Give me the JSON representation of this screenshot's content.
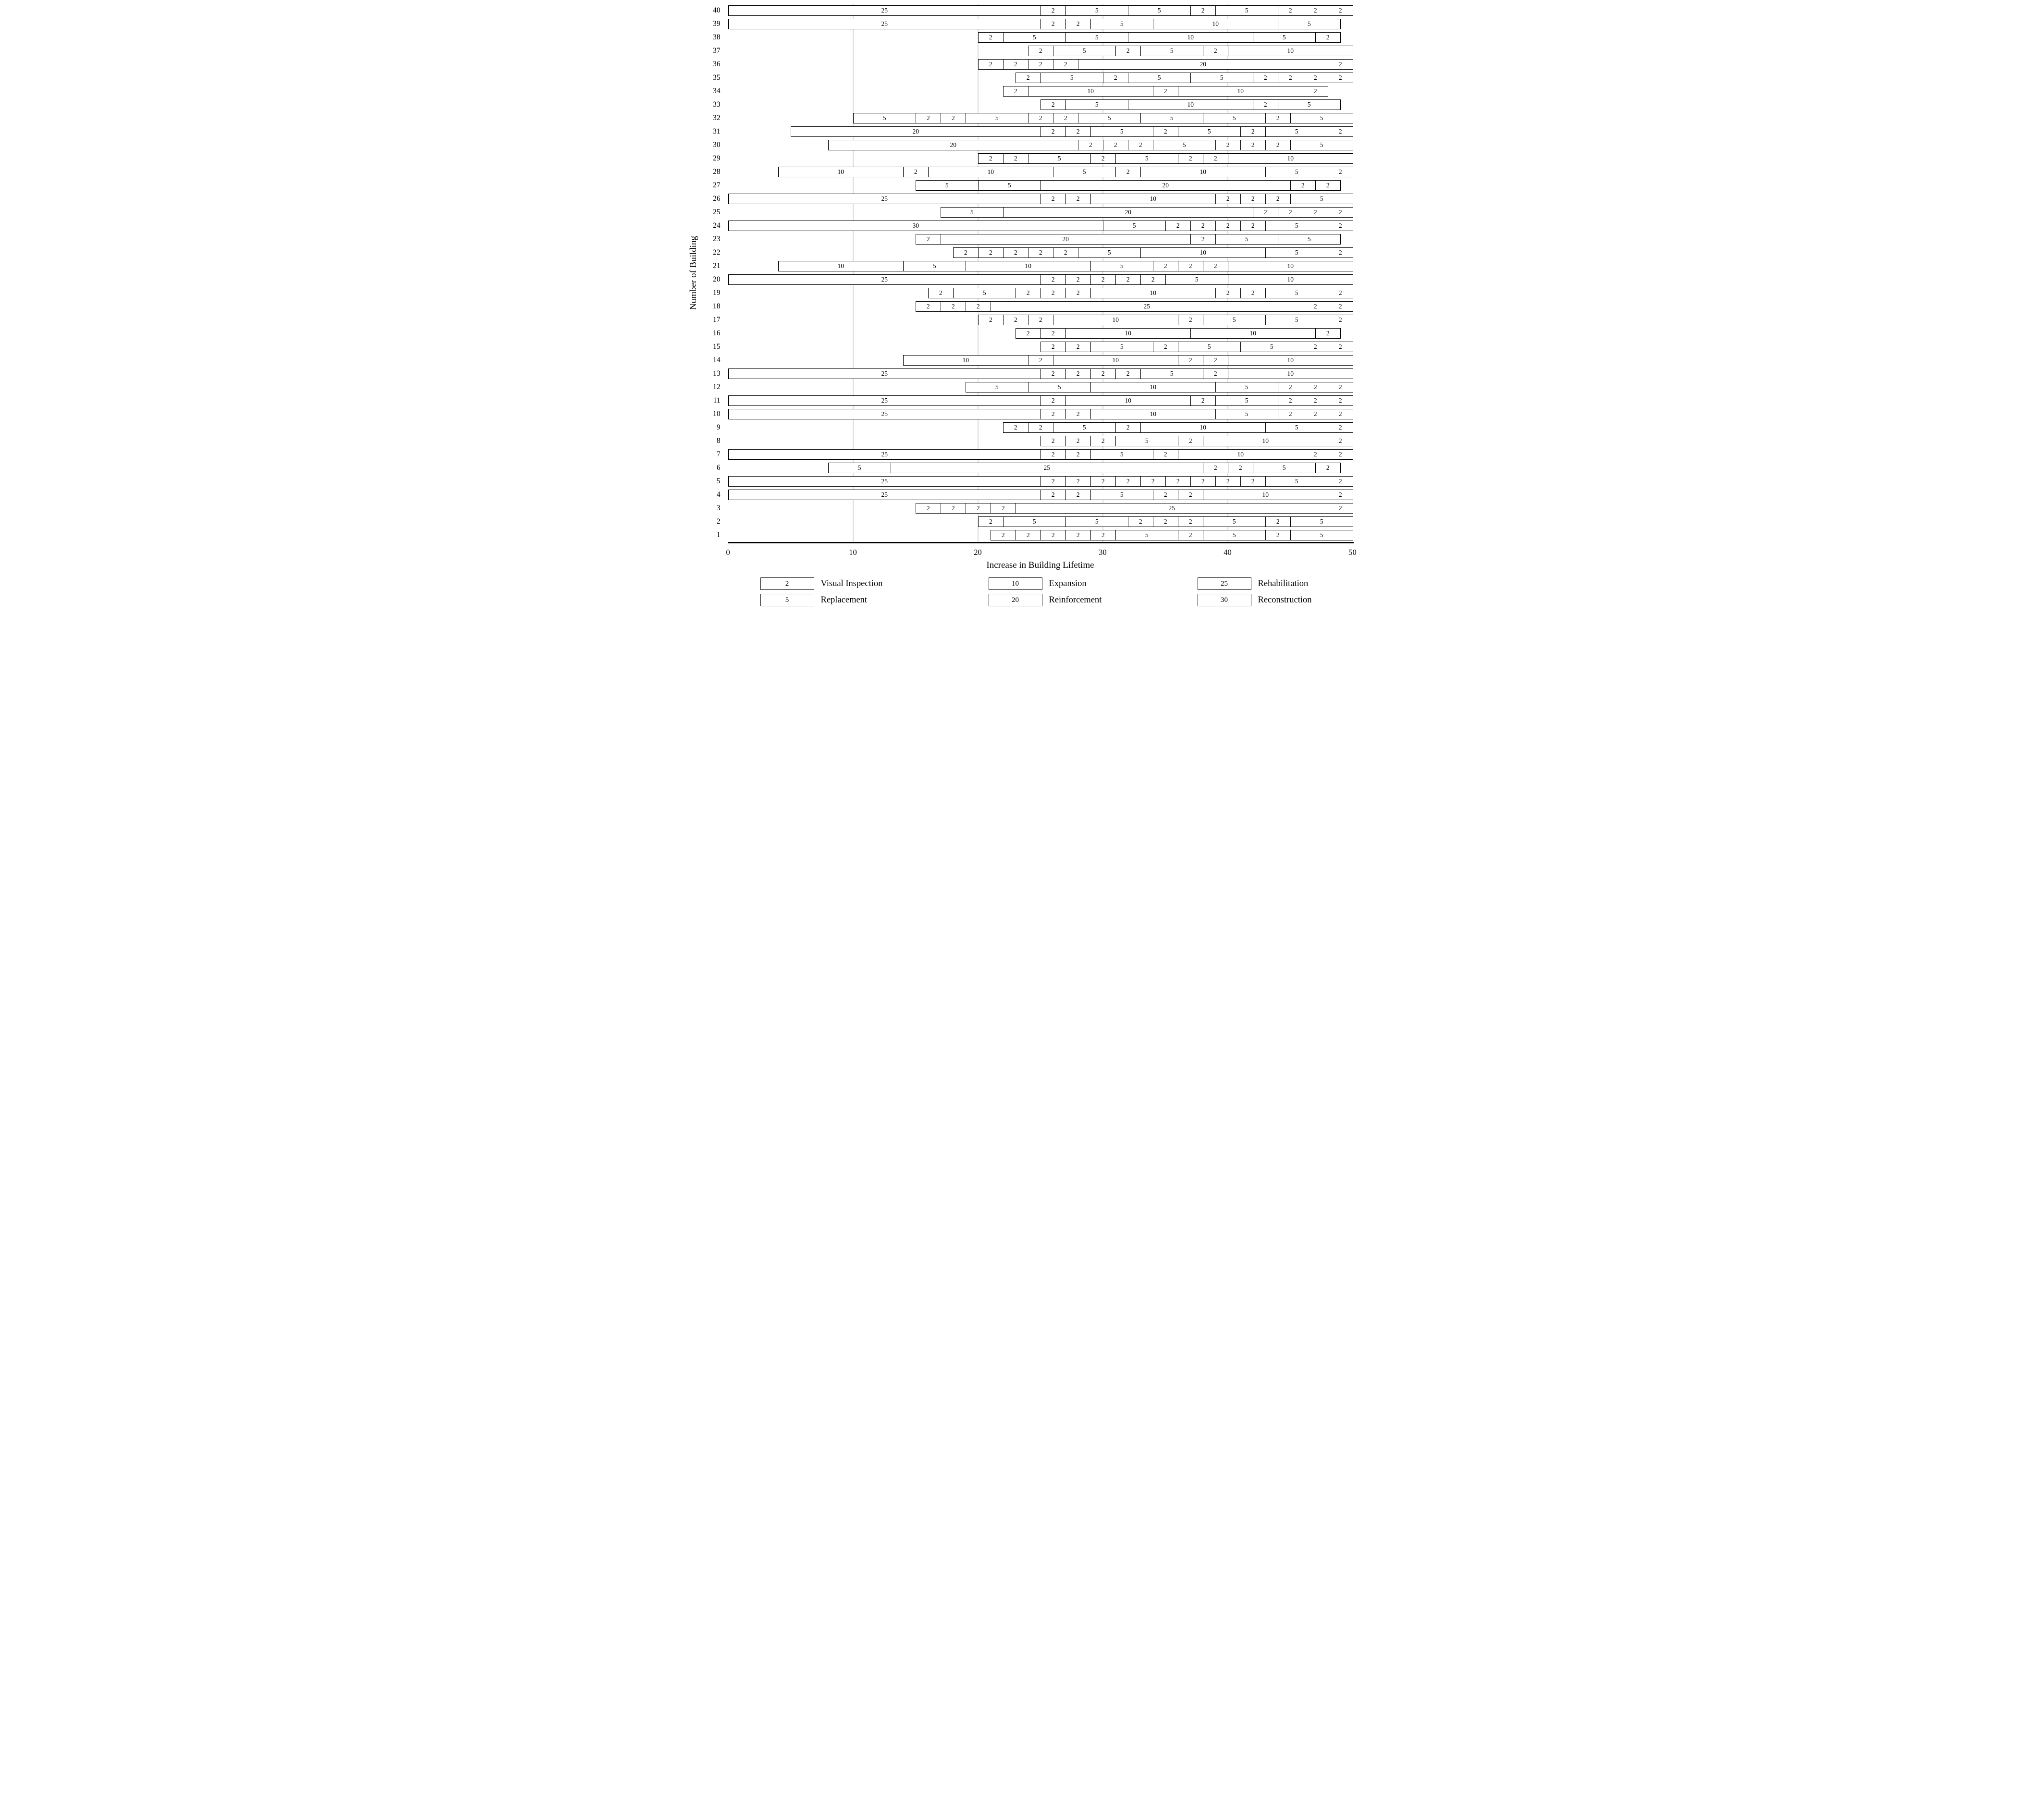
{
  "chart_data": {
    "type": "bar",
    "orientation": "horizontal",
    "stacked": true,
    "title": "",
    "xlabel": "Increase in Building Lifetime",
    "ylabel": "Number of Building",
    "xlim": [
      0,
      50
    ],
    "xticks": [
      0,
      10,
      20,
      30,
      40,
      50
    ],
    "grid": "vertical-light-gray",
    "legend_position": "bottom",
    "segment_meaning": {
      "2": "Visual Inspection",
      "5": "Replacement",
      "10": "Expansion",
      "20": "Reinforcement",
      "25": "Rehabilitation",
      "30": "Reconstruction"
    },
    "legend": [
      {
        "key": "2",
        "label": "Visual Inspection"
      },
      {
        "key": "5",
        "label": "Replacement"
      },
      {
        "key": "10",
        "label": "Expansion"
      },
      {
        "key": "20",
        "label": "Reinforcement"
      },
      {
        "key": "25",
        "label": "Rehabilitation"
      },
      {
        "key": "30",
        "label": "Reconstruction"
      }
    ],
    "rows": [
      {
        "building": 40,
        "start": 0,
        "segments": [
          25,
          2,
          5,
          5,
          2,
          5,
          2,
          2,
          2
        ]
      },
      {
        "building": 39,
        "start": 0,
        "segments": [
          25,
          2,
          2,
          5,
          10,
          5
        ]
      },
      {
        "building": 38,
        "start": 20,
        "segments": [
          2,
          5,
          5,
          10,
          5,
          2
        ]
      },
      {
        "building": 37,
        "start": 24,
        "segments": [
          2,
          5,
          2,
          5,
          2,
          10
        ]
      },
      {
        "building": 36,
        "start": 20,
        "segments": [
          2,
          2,
          2,
          2,
          20,
          2
        ]
      },
      {
        "building": 35,
        "start": 23,
        "segments": [
          2,
          5,
          2,
          5,
          5,
          2,
          2,
          2,
          2
        ]
      },
      {
        "building": 34,
        "start": 22,
        "segments": [
          2,
          10,
          2,
          10,
          2
        ]
      },
      {
        "building": 33,
        "start": 25,
        "segments": [
          2,
          5,
          10,
          2,
          5
        ]
      },
      {
        "building": 32,
        "start": 10,
        "segments": [
          5,
          2,
          2,
          5,
          2,
          2,
          5,
          5,
          5,
          2,
          5
        ]
      },
      {
        "building": 31,
        "start": 5,
        "segments": [
          20,
          2,
          2,
          5,
          2,
          5,
          2,
          5,
          2
        ]
      },
      {
        "building": 30,
        "start": 8,
        "segments": [
          20,
          2,
          2,
          2,
          5,
          2,
          2,
          2,
          5
        ]
      },
      {
        "building": 29,
        "start": 20,
        "segments": [
          2,
          2,
          5,
          2,
          5,
          2,
          2,
          10
        ]
      },
      {
        "building": 28,
        "start": 4,
        "segments": [
          10,
          2,
          10,
          5,
          2,
          10,
          5,
          2
        ]
      },
      {
        "building": 27,
        "start": 15,
        "segments": [
          5,
          5,
          20,
          2,
          2
        ]
      },
      {
        "building": 26,
        "start": 0,
        "segments": [
          25,
          2,
          2,
          10,
          2,
          2,
          2,
          5
        ]
      },
      {
        "building": 25,
        "start": 17,
        "segments": [
          5,
          20,
          2,
          2,
          2,
          2
        ]
      },
      {
        "building": 24,
        "start": 0,
        "segments": [
          30,
          5,
          2,
          2,
          2,
          2,
          5,
          2
        ]
      },
      {
        "building": 23,
        "start": 15,
        "segments": [
          2,
          20,
          2,
          5,
          5
        ]
      },
      {
        "building": 22,
        "start": 18,
        "segments": [
          2,
          2,
          2,
          2,
          2,
          5,
          10,
          5,
          2
        ]
      },
      {
        "building": 21,
        "start": 4,
        "segments": [
          10,
          5,
          10,
          5,
          2,
          2,
          2,
          10
        ]
      },
      {
        "building": 20,
        "start": 0,
        "segments": [
          25,
          2,
          2,
          2,
          2,
          2,
          5,
          10
        ]
      },
      {
        "building": 19,
        "start": 16,
        "segments": [
          2,
          5,
          2,
          2,
          2,
          10,
          2,
          2,
          5,
          2
        ]
      },
      {
        "building": 18,
        "start": 15,
        "segments": [
          2,
          2,
          2,
          25,
          2,
          2
        ]
      },
      {
        "building": 17,
        "start": 20,
        "segments": [
          2,
          2,
          2,
          10,
          2,
          5,
          5,
          2
        ]
      },
      {
        "building": 16,
        "start": 23,
        "segments": [
          2,
          2,
          10,
          10,
          2
        ]
      },
      {
        "building": 15,
        "start": 25,
        "segments": [
          2,
          2,
          5,
          2,
          5,
          5,
          2,
          2
        ]
      },
      {
        "building": 14,
        "start": 14,
        "segments": [
          10,
          2,
          10,
          2,
          2,
          10
        ]
      },
      {
        "building": 13,
        "start": 0,
        "segments": [
          25,
          2,
          2,
          2,
          2,
          5,
          2,
          10
        ]
      },
      {
        "building": 12,
        "start": 19,
        "segments": [
          5,
          5,
          10,
          5,
          2,
          2,
          2
        ]
      },
      {
        "building": 11,
        "start": 0,
        "segments": [
          25,
          2,
          10,
          2,
          5,
          2,
          2,
          2
        ]
      },
      {
        "building": 10,
        "start": 0,
        "segments": [
          25,
          2,
          2,
          10,
          5,
          2,
          2,
          2
        ]
      },
      {
        "building": 9,
        "start": 22,
        "segments": [
          2,
          2,
          5,
          2,
          10,
          5,
          2
        ]
      },
      {
        "building": 8,
        "start": 25,
        "segments": [
          2,
          2,
          2,
          5,
          2,
          10,
          2
        ]
      },
      {
        "building": 7,
        "start": 0,
        "segments": [
          25,
          2,
          2,
          5,
          2,
          10,
          2,
          2
        ]
      },
      {
        "building": 6,
        "start": 8,
        "segments": [
          5,
          25,
          2,
          2,
          5,
          2
        ]
      },
      {
        "building": 5,
        "start": 0,
        "segments": [
          25,
          2,
          2,
          2,
          2,
          2,
          2,
          2,
          2,
          2,
          5,
          2
        ]
      },
      {
        "building": 4,
        "start": 0,
        "segments": [
          25,
          2,
          2,
          5,
          2,
          2,
          10,
          2
        ]
      },
      {
        "building": 3,
        "start": 15,
        "segments": [
          2,
          2,
          2,
          2,
          25,
          2
        ]
      },
      {
        "building": 2,
        "start": 20,
        "segments": [
          2,
          5,
          5,
          2,
          2,
          2,
          5,
          2,
          5
        ]
      },
      {
        "building": 1,
        "start": 21,
        "segments": [
          2,
          2,
          2,
          2,
          2,
          5,
          2,
          5,
          2,
          5
        ]
      }
    ]
  }
}
